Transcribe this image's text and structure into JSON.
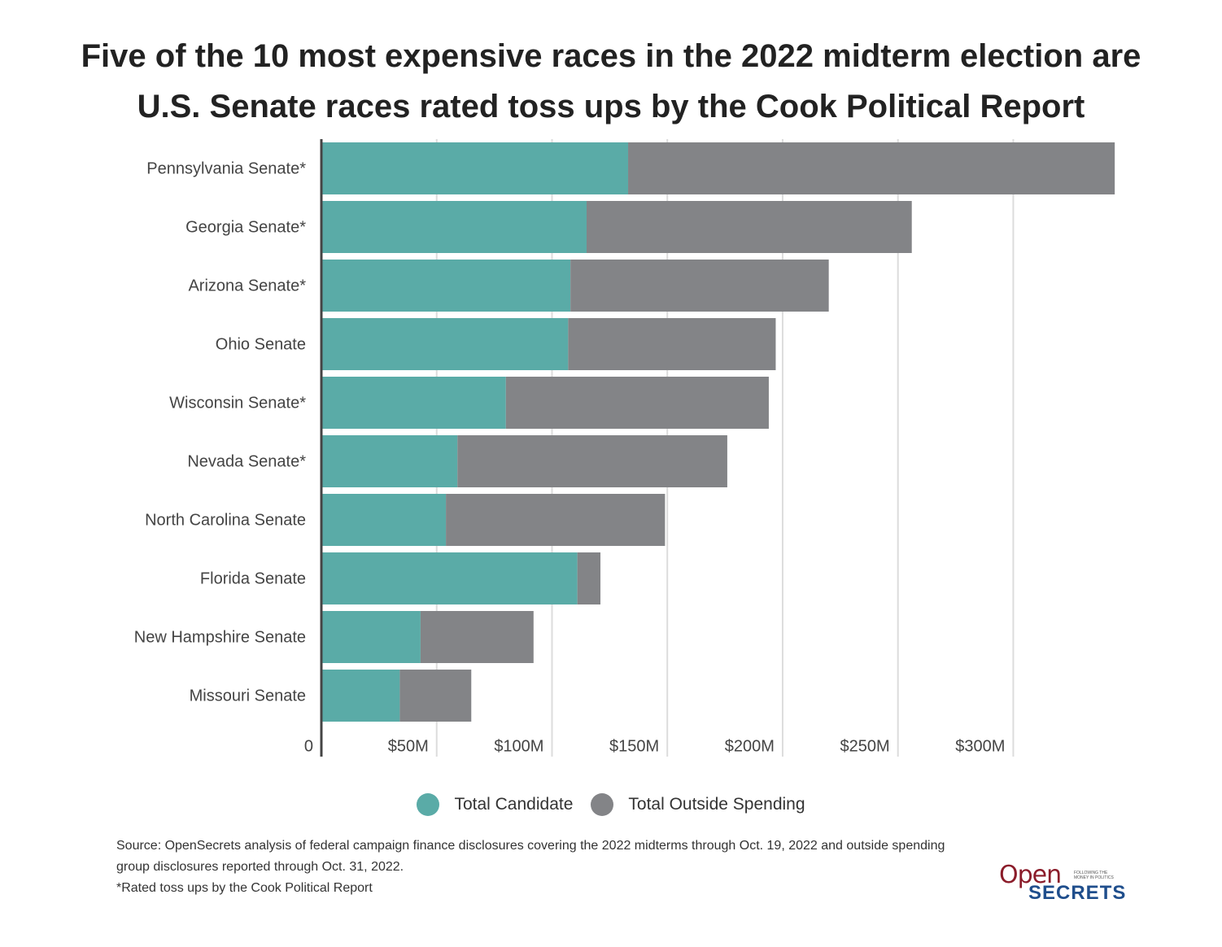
{
  "chart_data": {
    "type": "stacked-barh",
    "title": "Five of the 10 most expensive races in the 2022 midterm election are U.S. Senate races rated toss ups by the Cook Political Report",
    "categories": [
      "Pennsylvania Senate*",
      "Georgia Senate*",
      "Arizona Senate*",
      "Ohio Senate",
      "Wisconsin Senate*",
      "Nevada Senate*",
      "North Carolina Senate",
      "Florida Senate",
      "New Hampshire Senate",
      "Missouri Senate"
    ],
    "series": [
      {
        "name": "Total Candidate",
        "color": "#5aaba7",
        "values": [
          133,
          115,
          108,
          107,
          80,
          59,
          54,
          111,
          43,
          34
        ]
      },
      {
        "name": "Total Outside Spending",
        "color": "#838487",
        "values": [
          211,
          141,
          112,
          90,
          114,
          117,
          95,
          10,
          49,
          31
        ]
      }
    ],
    "xlim": [
      0,
      345
    ],
    "xticks": [
      0,
      {
        "value": 50,
        "label": "$50M"
      },
      {
        "value": 100,
        "label": "$100M"
      },
      {
        "value": 150,
        "label": "$150M"
      },
      {
        "value": 200,
        "label": "$200M"
      },
      {
        "value": 250,
        "label": "$250M"
      },
      {
        "value": 300,
        "label": "$300M"
      }
    ],
    "grid": true,
    "legend": "bottom",
    "notes": [
      "Source: OpenSecrets analysis of federal campaign finance disclosures covering the 2022 midterms through Oct. 19, 2022 and outside spending group disclosures reported through Oct. 31, 2022.",
      "*Rated toss ups by the Cook Political Report"
    ],
    "logo": {
      "top": "Open",
      "tagline": "FOLLOWING THE MONEY IN POLITICS",
      "bottom": "SECRETS"
    }
  }
}
